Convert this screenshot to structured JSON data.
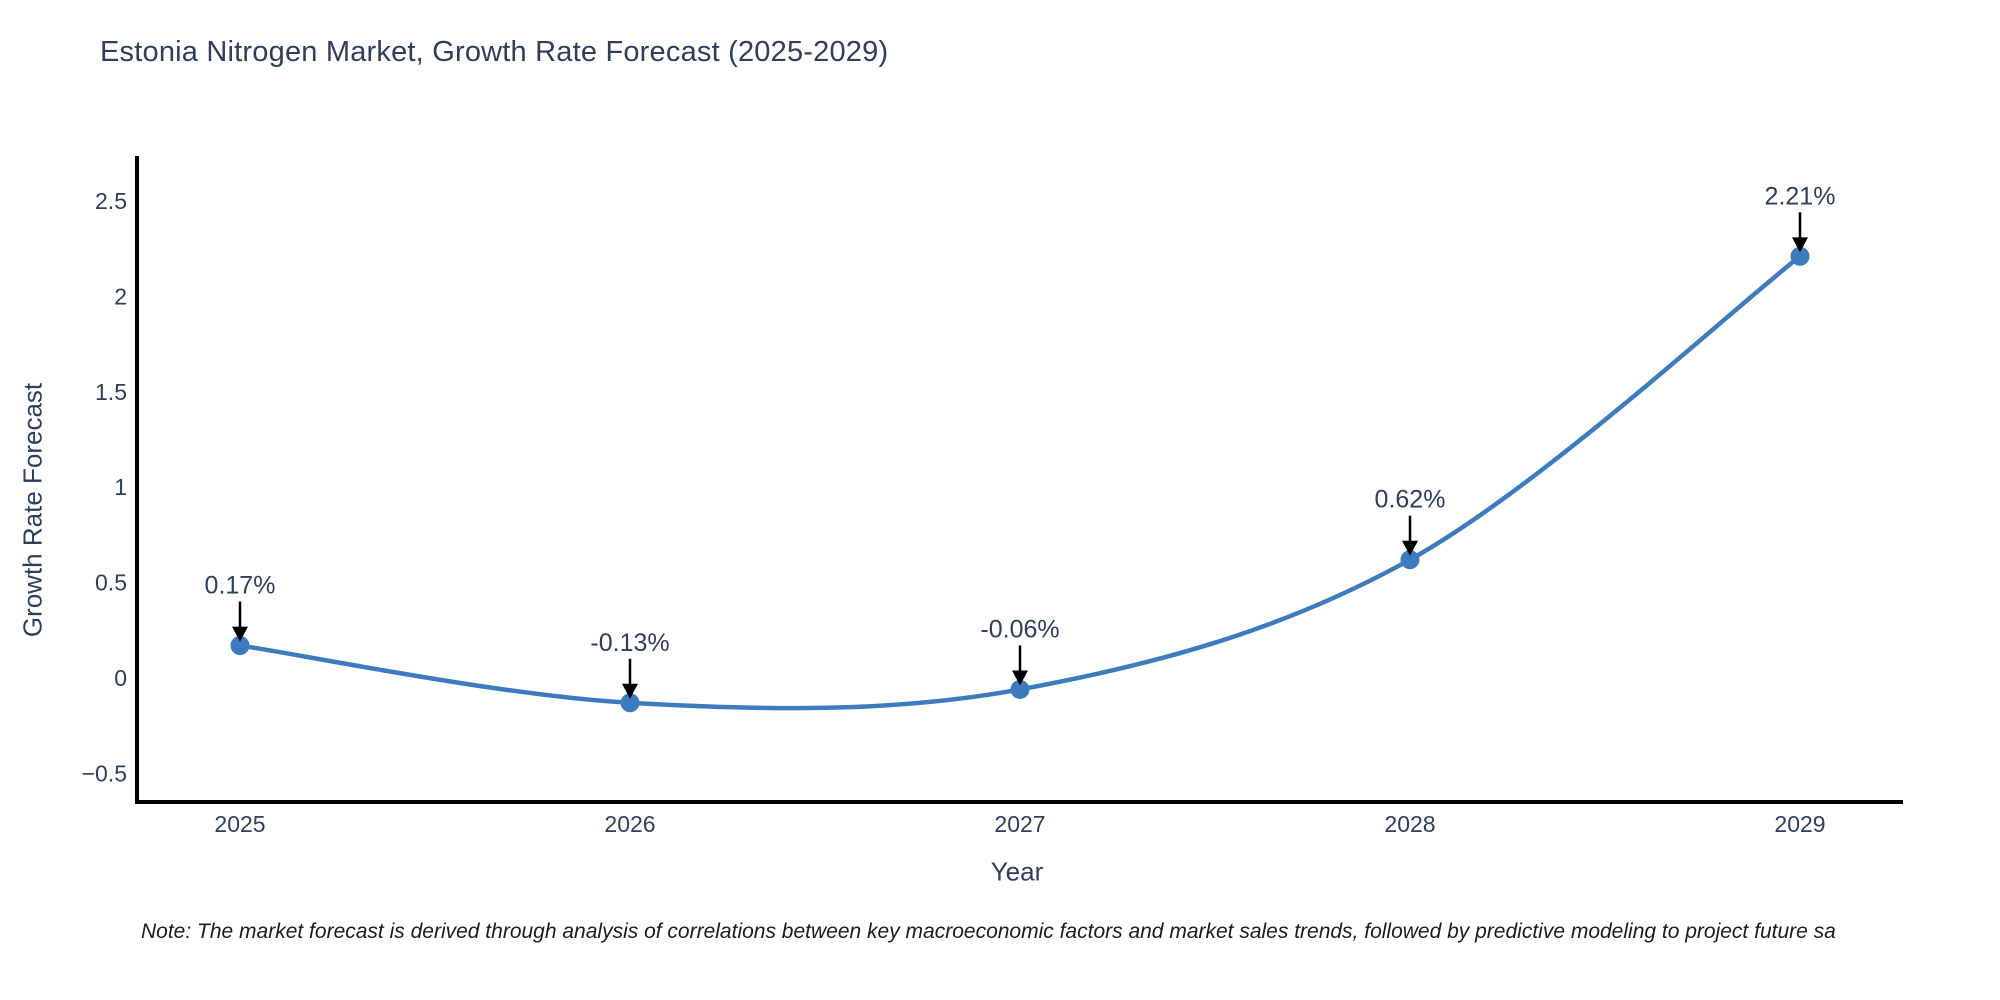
{
  "title": "Estonia Nitrogen Market, Growth Rate Forecast (2025-2029)",
  "x_axis": {
    "title": "Year",
    "tick_labels": [
      "2025",
      "2026",
      "2027",
      "2028",
      "2029"
    ]
  },
  "y_axis": {
    "title": "Growth Rate Forecast",
    "tick_labels": [
      "−0.5",
      "0",
      "0.5",
      "1",
      "1.5",
      "2",
      "2.5"
    ],
    "tick_values": [
      -0.5,
      0,
      0.5,
      1,
      1.5,
      2,
      2.5
    ]
  },
  "note": "Note: The market forecast is derived through analysis of correlations between key macroeconomic factors and market sales trends, followed by predictive modeling to project future sa",
  "colors": {
    "line": "#3c7bbd",
    "marker": "#3c7bbd",
    "text": "#2e3e5c",
    "axis": "#000000",
    "arrow": "#000000",
    "note_text": "#1c1c1c"
  },
  "chart_data": {
    "type": "line",
    "categories": [
      2025,
      2026,
      2027,
      2028,
      2029
    ],
    "values": [
      0.17,
      -0.13,
      -0.06,
      0.62,
      2.21
    ],
    "point_labels": [
      "0.17%",
      "-0.13%",
      "-0.06%",
      "0.62%",
      "2.21%"
    ],
    "series": [
      {
        "name": "Growth Rate Forecast",
        "values": [
          0.17,
          -0.13,
          -0.06,
          0.62,
          2.21
        ]
      }
    ],
    "title": "Estonia Nitrogen Market, Growth Rate Forecast (2025-2029)",
    "xlabel": "Year",
    "ylabel": "Growth Rate Forecast",
    "ylim": [
      -0.68,
      2.72
    ],
    "grid": false,
    "legend": "none",
    "line_shape": "spline",
    "annotations": "each point labeled with value and downward black arrow"
  }
}
